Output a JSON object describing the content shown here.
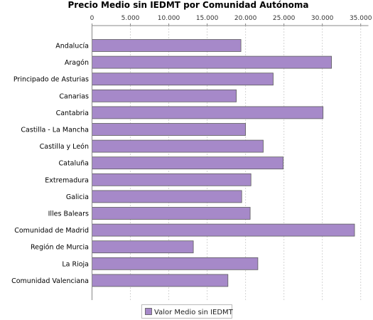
{
  "chart_data": {
    "type": "bar",
    "orientation": "horizontal",
    "title": "Precio Medio sin IEDMT por Comunidad Autónoma",
    "xlabel": "",
    "ylabel": "",
    "xlim": [
      0,
      36000
    ],
    "tick_values": [
      0,
      5000,
      10000,
      15000,
      20000,
      25000,
      30000,
      35000
    ],
    "tick_labels": [
      "0",
      "5.000",
      "10.000",
      "15.000",
      "20.000",
      "25.000",
      "30.000",
      "35.000"
    ],
    "grid": true,
    "legend_position": "bottom",
    "bar_color": "#a689c9",
    "categories": [
      "Andalucía",
      "Aragón",
      "Principado de Asturias",
      "Canarias",
      "Cantabria",
      "Castilla - La Mancha",
      "Castilla y León",
      "Cataluña",
      "Extremadura",
      "Galicia",
      "Illes Balears",
      "Comunidad de Madrid",
      "Región de Murcia",
      "La Rioja",
      "Comunidad Valenciana"
    ],
    "series": [
      {
        "name": "Valor Medio sin IEDMT",
        "values": [
          19400,
          31200,
          23600,
          18800,
          30100,
          20000,
          22300,
          24900,
          20700,
          19500,
          20600,
          34200,
          13200,
          21600,
          17700
        ]
      }
    ]
  }
}
